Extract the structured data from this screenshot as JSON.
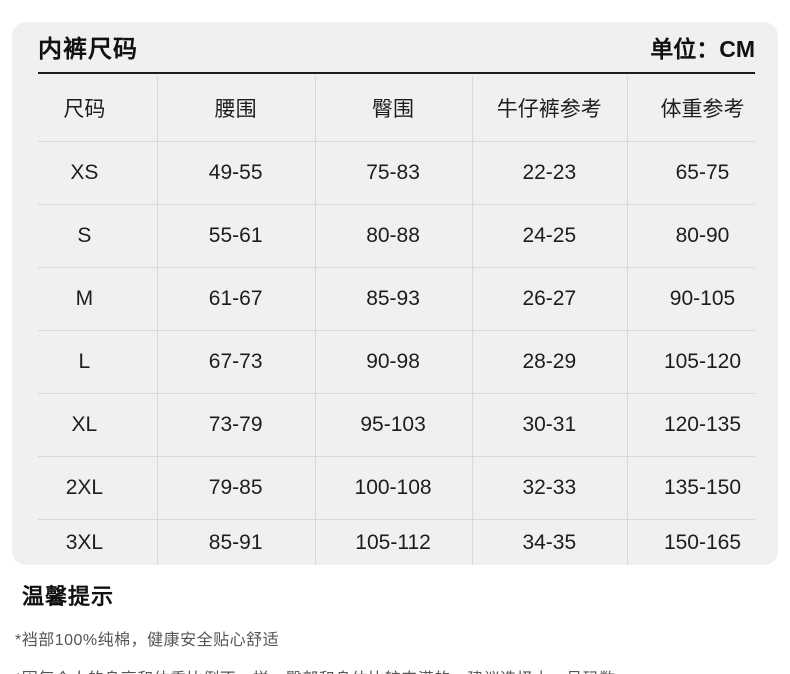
{
  "header": {
    "title": "内裤尺码",
    "unit": "单位：CM"
  },
  "table": {
    "columns": [
      "尺码",
      "腰围",
      "臀围",
      "牛仔裤参考",
      "体重参考"
    ],
    "rows": [
      [
        "XS",
        "49-55",
        "75-83",
        "22-23",
        "65-75"
      ],
      [
        "S",
        "55-61",
        "80-88",
        "24-25",
        "80-90"
      ],
      [
        "M",
        "61-67",
        "85-93",
        "26-27",
        "90-105"
      ],
      [
        "L",
        "67-73",
        "90-98",
        "28-29",
        "105-120"
      ],
      [
        "XL",
        "73-79",
        "95-103",
        "30-31",
        "120-135"
      ],
      [
        "2XL",
        "79-85",
        "100-108",
        "32-33",
        "135-150"
      ],
      [
        "3XL",
        "85-91",
        "105-112",
        "34-35",
        "150-165"
      ]
    ]
  },
  "tips": {
    "title": "温馨提示",
    "notes": [
      "*裆部100%纯棉，健康安全贴心舒适",
      "*因每个人的身高和体重比例不一样，臀部和身体比较丰满的，建议选择大一号码数"
    ]
  },
  "colors": {
    "card_bg": "#f0f0f0",
    "divider": "#d9d9d9",
    "dark_rule": "#1c1c1c",
    "text": "#1d1d1d",
    "note_text": "#555555"
  }
}
